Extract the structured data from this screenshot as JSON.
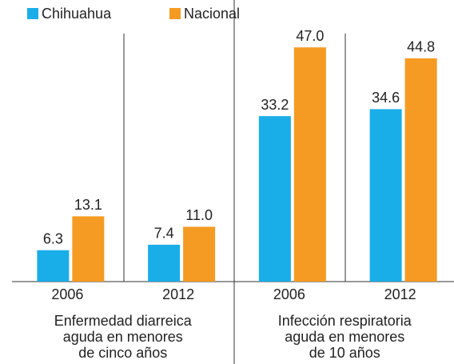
{
  "chart_data": {
    "type": "bar",
    "categories": [
      "2006",
      "2012",
      "2006",
      "2012"
    ],
    "groups": [
      [
        "Enfermedad diarreica",
        "aguda en menores",
        "de cinco años"
      ],
      [
        "Infección respiratoria",
        "aguda en menores",
        "de 10 años"
      ]
    ],
    "series": [
      {
        "name": "Chihuahua",
        "color": "#1aaee8",
        "values": [
          6.3,
          7.4,
          33.2,
          34.6
        ],
        "value_labels": [
          "6.3",
          "7.4",
          "33.2",
          "34.6"
        ]
      },
      {
        "name": "Nacional",
        "color": "#f59b23",
        "values": [
          13.1,
          11.0,
          47.0,
          44.8
        ],
        "value_labels": [
          "13.1",
          "11.0",
          "47.0",
          "44.8"
        ]
      }
    ],
    "ylim": [
      0,
      56.5
    ]
  }
}
